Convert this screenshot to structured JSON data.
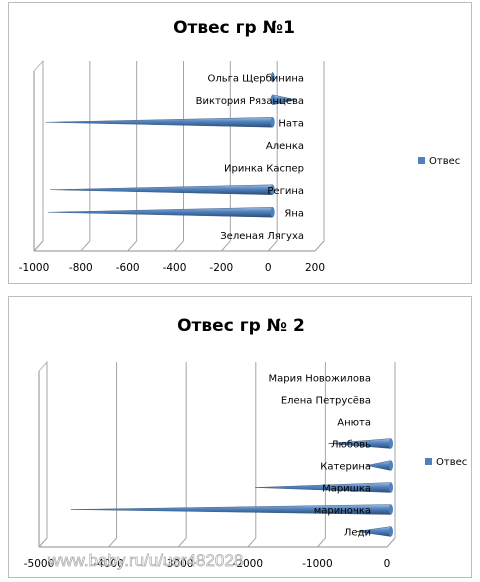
{
  "chart_data": [
    {
      "type": "bar",
      "orientation": "horizontal",
      "title": "Отвес гр №1",
      "categories": [
        "Ольга Щербинина",
        "Виктория Рязанцева",
        "Ната",
        "Аленка",
        "Иринка Каспер",
        "Регина",
        "Яна",
        "Зеленая Лягуха"
      ],
      "series": [
        {
          "name": "Отвес",
          "values": [
            -5,
            100,
            -970,
            0,
            0,
            -950,
            -960,
            0
          ]
        }
      ],
      "xlim": [
        -1000,
        200
      ],
      "xticks": [
        "-1000",
        "-800",
        "-600",
        "-400",
        "-200",
        "0",
        "200"
      ],
      "grid": true,
      "legend": "right",
      "bar_style": "cone"
    },
    {
      "type": "bar",
      "orientation": "horizontal",
      "title": "Отвес гр № 2",
      "categories": [
        "Мария Новожилова",
        "Елена Петрусёва",
        "Анюта",
        "Любовь",
        "Катерина",
        "Маришка",
        "мариночка",
        "Леди"
      ],
      "series": [
        {
          "name": "Отвес",
          "values": [
            0,
            0,
            0,
            -900,
            -350,
            -1950,
            -4600,
            -500
          ]
        }
      ],
      "xlim": [
        -5000,
        0
      ],
      "xticks": [
        "-5000",
        "-4000",
        "-3000",
        "-2000",
        "-1000",
        "0"
      ],
      "grid": true,
      "legend": "right",
      "bar_style": "cone"
    }
  ],
  "colors": {
    "bar_light": "#9cbde3",
    "bar_mid": "#4f81bd",
    "bar_dark": "#2c4d75",
    "grid": "#a6a6a6",
    "text": "#000000"
  },
  "watermark": "www.baby.ru/u/usr482028"
}
